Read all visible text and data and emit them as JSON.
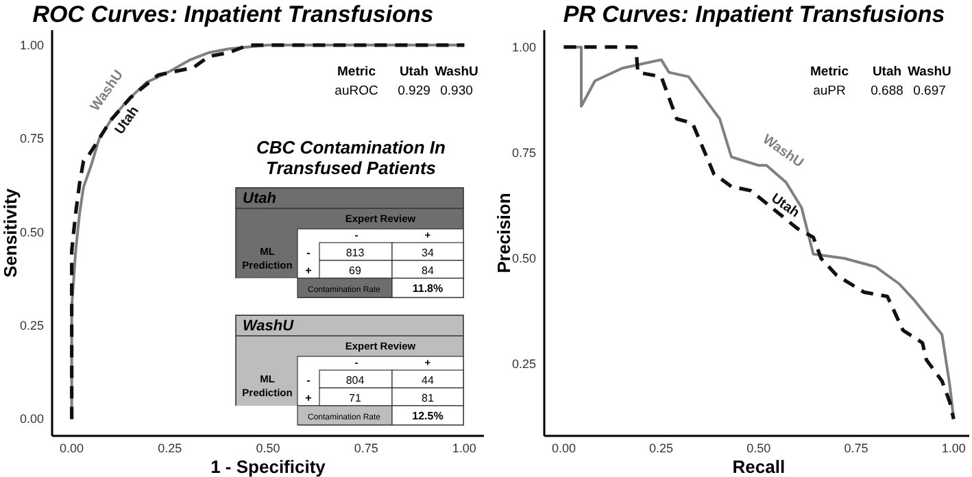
{
  "chart_data": [
    {
      "type": "line",
      "title": "ROC Curves: Inpatient Transfusions",
      "xlabel": "1 - Specificity",
      "ylabel": "Sensitivity",
      "xlim": [
        -0.05,
        1.05
      ],
      "ylim": [
        -0.045,
        1.04
      ],
      "xticks": [
        {
          "value": 0,
          "label": "0.00"
        },
        {
          "value": 0.25,
          "label": "0.25"
        },
        {
          "value": 0.5,
          "label": "0.50"
        },
        {
          "value": 0.75,
          "label": "0.75"
        },
        {
          "value": 1,
          "label": "1.00"
        }
      ],
      "yticks": [
        {
          "value": 0,
          "label": "0.00"
        },
        {
          "value": 0.25,
          "label": "0.25"
        },
        {
          "value": 0.5,
          "label": "0.50"
        },
        {
          "value": 0.75,
          "label": "0.75"
        },
        {
          "value": 1,
          "label": "1.00"
        }
      ],
      "grid": false,
      "series": [
        {
          "name": "WashU",
          "color": "#808080",
          "line_style": "solid",
          "x": [
            0,
            0,
            0.01,
            0.02,
            0.03,
            0.05,
            0.07,
            0.1,
            0.14,
            0.19,
            0.25,
            0.3,
            0.35,
            0.4,
            0.5,
            1
          ],
          "values": [
            0,
            0.3,
            0.45,
            0.55,
            0.62,
            0.68,
            0.75,
            0.8,
            0.85,
            0.9,
            0.93,
            0.96,
            0.98,
            0.99,
            1,
            1
          ]
        },
        {
          "name": "Utah",
          "color": "#111111",
          "line_style": "dashed",
          "x": [
            0,
            0,
            0.01,
            0.02,
            0.03,
            0.04,
            0.07,
            0.1,
            0.15,
            0.22,
            0.31,
            0.35,
            0.4,
            0.45,
            1
          ],
          "values": [
            0,
            0.45,
            0.55,
            0.63,
            0.69,
            0.7,
            0.75,
            0.8,
            0.86,
            0.92,
            0.94,
            0.97,
            0.98,
            1,
            1
          ]
        }
      ],
      "annotations": [
        "Metric",
        "Utah",
        "WashU",
        "auROC",
        "0.929",
        "0.930"
      ]
    },
    {
      "type": "line",
      "title": "PR Curves: Inpatient Transfusions",
      "xlabel": "Recall",
      "ylabel": "Precision",
      "xlim": [
        -0.05,
        1.04
      ],
      "ylim": [
        0.08,
        1.04
      ],
      "xticks": [
        {
          "value": 0,
          "label": "0.00"
        },
        {
          "value": 0.25,
          "label": "0.25"
        },
        {
          "value": 0.5,
          "label": "0.50"
        },
        {
          "value": 0.75,
          "label": "0.75"
        },
        {
          "value": 1,
          "label": "1.00"
        }
      ],
      "yticks": [
        {
          "value": 0.25,
          "label": "0.25"
        },
        {
          "value": 0.5,
          "label": "0.50"
        },
        {
          "value": 0.75,
          "label": "0.75"
        },
        {
          "value": 1,
          "label": "1.00"
        }
      ],
      "grid": false,
      "series": [
        {
          "name": "WashU",
          "color": "#808080",
          "line_style": "solid",
          "x": [
            0,
            0.045,
            0.045,
            0.08,
            0.15,
            0.25,
            0.27,
            0.32,
            0.36,
            0.4,
            0.43,
            0.5,
            0.52,
            0.57,
            0.61,
            0.64,
            0.72,
            0.8,
            0.86,
            0.9,
            0.97,
            0.99,
            1
          ],
          "values": [
            1,
            1,
            0.86,
            0.92,
            0.95,
            0.97,
            0.94,
            0.93,
            0.88,
            0.83,
            0.74,
            0.72,
            0.72,
            0.68,
            0.62,
            0.51,
            0.5,
            0.48,
            0.44,
            0.4,
            0.32,
            0.2,
            0.12
          ]
        },
        {
          "name": "Utah",
          "color": "#111111",
          "line_style": "dashed",
          "x": [
            0,
            0.185,
            0.19,
            0.25,
            0.29,
            0.33,
            0.385,
            0.43,
            0.48,
            0.52,
            0.6,
            0.64,
            0.66,
            0.7,
            0.77,
            0.83,
            0.87,
            0.92,
            0.93,
            0.97,
            0.99,
            1
          ],
          "values": [
            1,
            1,
            0.94,
            0.93,
            0.83,
            0.82,
            0.7,
            0.67,
            0.66,
            0.63,
            0.57,
            0.55,
            0.5,
            0.46,
            0.42,
            0.41,
            0.33,
            0.3,
            0.26,
            0.21,
            0.16,
            0.12
          ]
        }
      ],
      "annotations": [
        "Metric",
        "Utah",
        "WashU",
        "auPR",
        "0.688",
        "0.697"
      ]
    },
    {
      "type": "other",
      "title": "CBC Contamination In Transfused Patients",
      "colors": [
        "#6e6e6e",
        "#bdbdbd"
      ],
      "annotations": [
        "Utah",
        "Expert Review",
        "-",
        "+",
        "ML Prediction",
        "-",
        "+",
        "813",
        "34",
        "69",
        "84",
        "Contamination Rate",
        "11.8%",
        "WashU",
        "Expert Review",
        "-",
        "+",
        "ML Prediction",
        "-",
        "+",
        "804",
        "44",
        "71",
        "81",
        "Contamination Rate",
        "12.5%"
      ]
    }
  ]
}
